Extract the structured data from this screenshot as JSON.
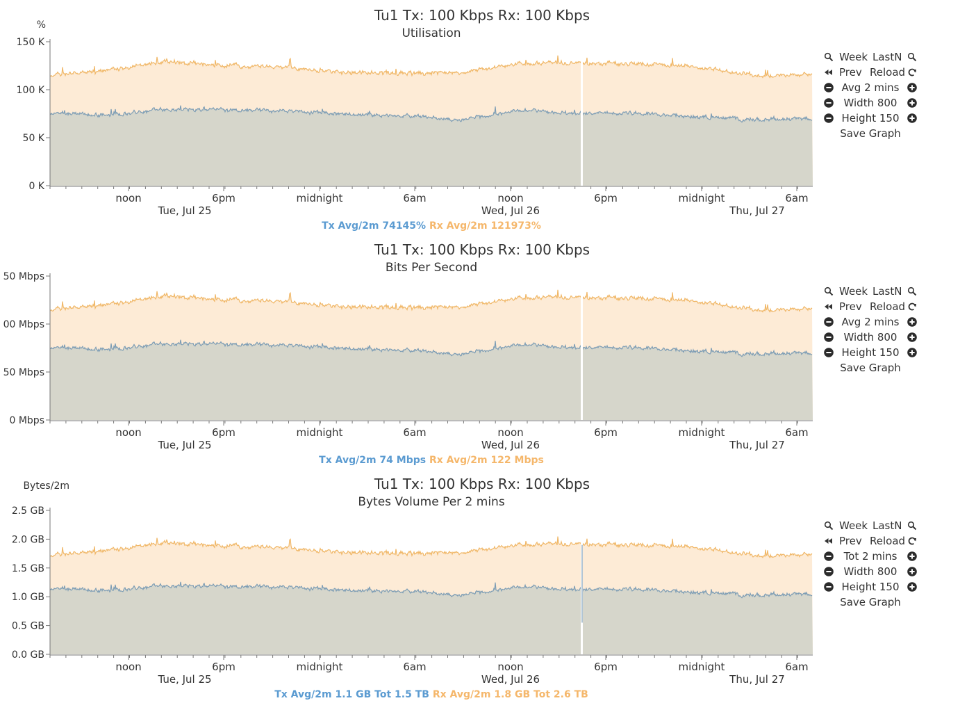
{
  "colors": {
    "tx_fill": "#d6d6cb",
    "tx_line": "#7d9db5",
    "rx_fill": "#fdebd6",
    "rx_line": "#f0b767",
    "tx_legend": "#5b9bd1",
    "rx_legend": "#f5b76b",
    "axis": "#777777",
    "text": "#333333"
  },
  "controls": {
    "week": "Week",
    "lastn": "LastN",
    "prev": "Prev",
    "reload": "Reload",
    "width": "Width 800",
    "height": "Height 150",
    "save": "Save Graph",
    "icons": [
      "zoom-out-icon",
      "zoom-in-icon",
      "rewind-icon",
      "refresh-icon",
      "minus-circle-icon",
      "plus-circle-icon"
    ]
  },
  "graphs": [
    {
      "title": "Tu1    Tx: 100 Kbps  Rx: 100 Kbps",
      "subtitle": "Utilisation",
      "unit": "%",
      "agg_label": "Avg 2 mins",
      "legend": {
        "tx": "Tx  Avg/2m 74145%",
        "rx": "Rx  Avg/2m 121973%"
      }
    },
    {
      "title": "Tu1    Tx: 100 Kbps  Rx: 100 Kbps",
      "subtitle": "Bits Per Second",
      "unit": "",
      "agg_label": "Avg 2 mins",
      "legend": {
        "tx": "Tx  Avg/2m 74 Mbps",
        "rx": "Rx  Avg/2m 122 Mbps"
      }
    },
    {
      "title": "Tu1    Tx: 100 Kbps  Rx: 100 Kbps",
      "subtitle": "Bytes Volume Per 2 mins",
      "unit": "Bytes/2m",
      "agg_label": "Tot 2 mins",
      "legend": {
        "tx": "Tx  Avg/2m 1.1 GB  Tot 1.5 TB",
        "rx": "Rx  Avg/2m 1.8 GB  Tot 2.6 TB"
      }
    }
  ],
  "chart_data": [
    {
      "type": "area",
      "title": "Tu1    Tx: 100 Kbps  Rx: 100 Kbps",
      "subtitle": "Utilisation",
      "ylabel": "%",
      "ylim": [
        0,
        150000
      ],
      "yticks": [
        0,
        50000,
        100000,
        150000
      ],
      "ytick_labels": [
        "0 K",
        "50 K",
        "100 K",
        "150 K"
      ],
      "x_tick_labels": [
        "noon",
        "6pm",
        "midnight",
        "6am",
        "noon",
        "6pm",
        "midnight",
        "6am"
      ],
      "x_date_labels": [
        "Tue, Jul 25",
        "Wed, Jul 26",
        "Thu, Jul 27"
      ],
      "x": [
        "Jul 25 04:00",
        "Jul 25 08:00",
        "Jul 25 12:00",
        "Jul 25 16:00",
        "Jul 25 20:00",
        "Jul 26 00:00",
        "Jul 26 04:00",
        "Jul 26 08:00",
        "Jul 26 12:00",
        "Jul 26 16:00",
        "Jul 26 20:00",
        "Jul 27 00:00",
        "Jul 27 04:00",
        "Jul 27 08:00"
      ],
      "series": [
        {
          "name": "Tx",
          "values": [
            76000,
            73000,
            80000,
            79000,
            78000,
            75000,
            73000,
            68000,
            79000,
            75000,
            76000,
            72000,
            69000,
            70000
          ]
        },
        {
          "name": "Rx",
          "values": [
            115000,
            120000,
            130000,
            125000,
            124000,
            118000,
            117000,
            118000,
            127000,
            128000,
            127000,
            124000,
            115000,
            115000
          ]
        }
      ],
      "grid": false,
      "legend": "bottom-center"
    },
    {
      "type": "area",
      "title": "Tu1    Tx: 100 Kbps  Rx: 100 Kbps",
      "subtitle": "Bits Per Second",
      "ylabel": "",
      "ylim": [
        0,
        150
      ],
      "yticks": [
        0,
        50,
        100,
        150
      ],
      "ytick_labels": [
        "0 Mbps",
        "50 Mbps",
        "00 Mbps",
        "50 Mbps"
      ],
      "x_tick_labels": [
        "noon",
        "6pm",
        "midnight",
        "6am",
        "noon",
        "6pm",
        "midnight",
        "6am"
      ],
      "x_date_labels": [
        "Tue, Jul 25",
        "Wed, Jul 26",
        "Thu, Jul 27"
      ],
      "x": [
        "Jul 25 04:00",
        "Jul 25 08:00",
        "Jul 25 12:00",
        "Jul 25 16:00",
        "Jul 25 20:00",
        "Jul 26 00:00",
        "Jul 26 04:00",
        "Jul 26 08:00",
        "Jul 26 12:00",
        "Jul 26 16:00",
        "Jul 26 20:00",
        "Jul 27 00:00",
        "Jul 27 04:00",
        "Jul 27 08:00"
      ],
      "series": [
        {
          "name": "Tx",
          "values": [
            76,
            73,
            80,
            79,
            78,
            75,
            73,
            68,
            79,
            75,
            76,
            72,
            69,
            70
          ]
        },
        {
          "name": "Rx",
          "values": [
            115,
            120,
            130,
            125,
            124,
            118,
            117,
            118,
            127,
            128,
            127,
            124,
            115,
            115
          ]
        }
      ],
      "grid": false,
      "legend": "bottom-center"
    },
    {
      "type": "area",
      "title": "Tu1    Tx: 100 Kbps  Rx: 100 Kbps",
      "subtitle": "Bytes Volume Per 2 mins",
      "ylabel": "Bytes/2m",
      "ylim": [
        0,
        2.5
      ],
      "yticks": [
        0,
        0.5,
        1.0,
        1.5,
        2.0,
        2.5
      ],
      "ytick_labels": [
        "0.0 GB",
        "0.5 GB",
        "1.0 GB",
        "1.5 GB",
        "2.0 GB",
        "2.5 GB"
      ],
      "x_tick_labels": [
        "noon",
        "6pm",
        "midnight",
        "6am",
        "noon",
        "6pm",
        "midnight",
        "6am"
      ],
      "x_date_labels": [
        "Tue, Jul 25",
        "Wed, Jul 26",
        "Thu, Jul 27"
      ],
      "x": [
        "Jul 25 04:00",
        "Jul 25 08:00",
        "Jul 25 12:00",
        "Jul 25 16:00",
        "Jul 25 20:00",
        "Jul 26 00:00",
        "Jul 26 04:00",
        "Jul 26 08:00",
        "Jul 26 12:00",
        "Jul 26 16:00",
        "Jul 26 20:00",
        "Jul 27 00:00",
        "Jul 27 04:00",
        "Jul 27 08:00"
      ],
      "series": [
        {
          "name": "Tx",
          "values": [
            1.15,
            1.1,
            1.2,
            1.18,
            1.17,
            1.12,
            1.1,
            1.02,
            1.18,
            1.12,
            1.14,
            1.08,
            1.03,
            1.05
          ]
        },
        {
          "name": "Rx",
          "values": [
            1.72,
            1.8,
            1.95,
            1.88,
            1.86,
            1.77,
            1.75,
            1.77,
            1.9,
            1.92,
            1.9,
            1.86,
            1.72,
            1.72
          ]
        }
      ],
      "grid": false,
      "legend": "bottom-center"
    }
  ]
}
